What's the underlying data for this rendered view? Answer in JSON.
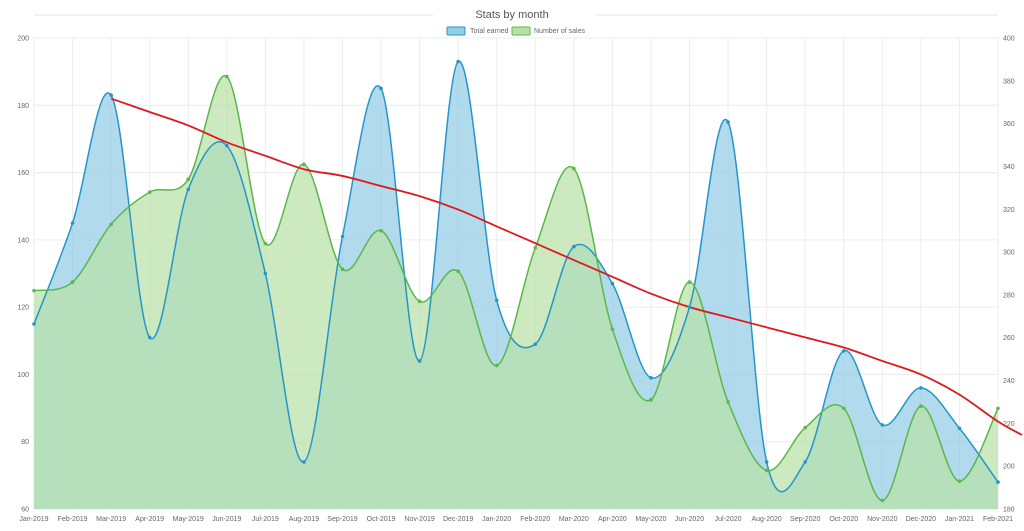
{
  "chart_data": {
    "type": "area",
    "title": "Stats by month",
    "categories": [
      "Jan-2019",
      "Feb-2019",
      "Mar-2019",
      "Apr-2019",
      "May-2019",
      "Jun-2019",
      "Jul-2019",
      "Aug-2019",
      "Sep-2019",
      "Oct-2019",
      "Nov-2019",
      "Dec-2019",
      "Jan-2020",
      "Feb-2020",
      "Mar-2020",
      "Apr-2020",
      "May-2020",
      "Jun-2020",
      "Jul-2020",
      "Aug-2020",
      "Sep-2020",
      "Oct-2020",
      "Nov-2020",
      "Dec-2020",
      "Jan-2021",
      "Feb-2021"
    ],
    "series": [
      {
        "name": "Total earned",
        "axis": "left",
        "values": [
          115,
          145,
          183,
          111,
          155,
          168,
          130,
          74,
          141,
          185,
          104,
          193,
          122,
          109,
          138,
          127,
          99,
          120,
          175,
          74,
          74,
          107,
          85,
          96,
          84,
          68
        ],
        "line_color": "#2596c9",
        "fill_color": "#93cde6"
      },
      {
        "name": "Number of sales",
        "axis": "right",
        "values": [
          282,
          286,
          313,
          328,
          334,
          382,
          304,
          341,
          292,
          310,
          277,
          291,
          247,
          302,
          339,
          264,
          231,
          286,
          230,
          198,
          218,
          227,
          184,
          228,
          193,
          227
        ],
        "line_color": "#5ab84a",
        "fill_color": "#b9e0a8"
      }
    ],
    "trend": {
      "axis": "left",
      "values": [
        null,
        null,
        182,
        178,
        174,
        169,
        165,
        161,
        159,
        156,
        153,
        149,
        144,
        139,
        134,
        129,
        124,
        120,
        117,
        114,
        111,
        108,
        104,
        100,
        94,
        86
      ],
      "extra_value": 82,
      "color": "#e0181e"
    },
    "y_left": {
      "min": 60,
      "max": 200,
      "ticks": [
        "60",
        "80",
        "100",
        "120",
        "140",
        "160",
        "180",
        "200"
      ]
    },
    "y_right": {
      "min": 180,
      "max": 400,
      "ticks": [
        "180",
        "200",
        "220",
        "240",
        "260",
        "280",
        "300",
        "320",
        "340",
        "360",
        "380",
        "400"
      ]
    },
    "grid": true,
    "legend_position": "top-center",
    "overlap_color": "#8bc7bd"
  }
}
